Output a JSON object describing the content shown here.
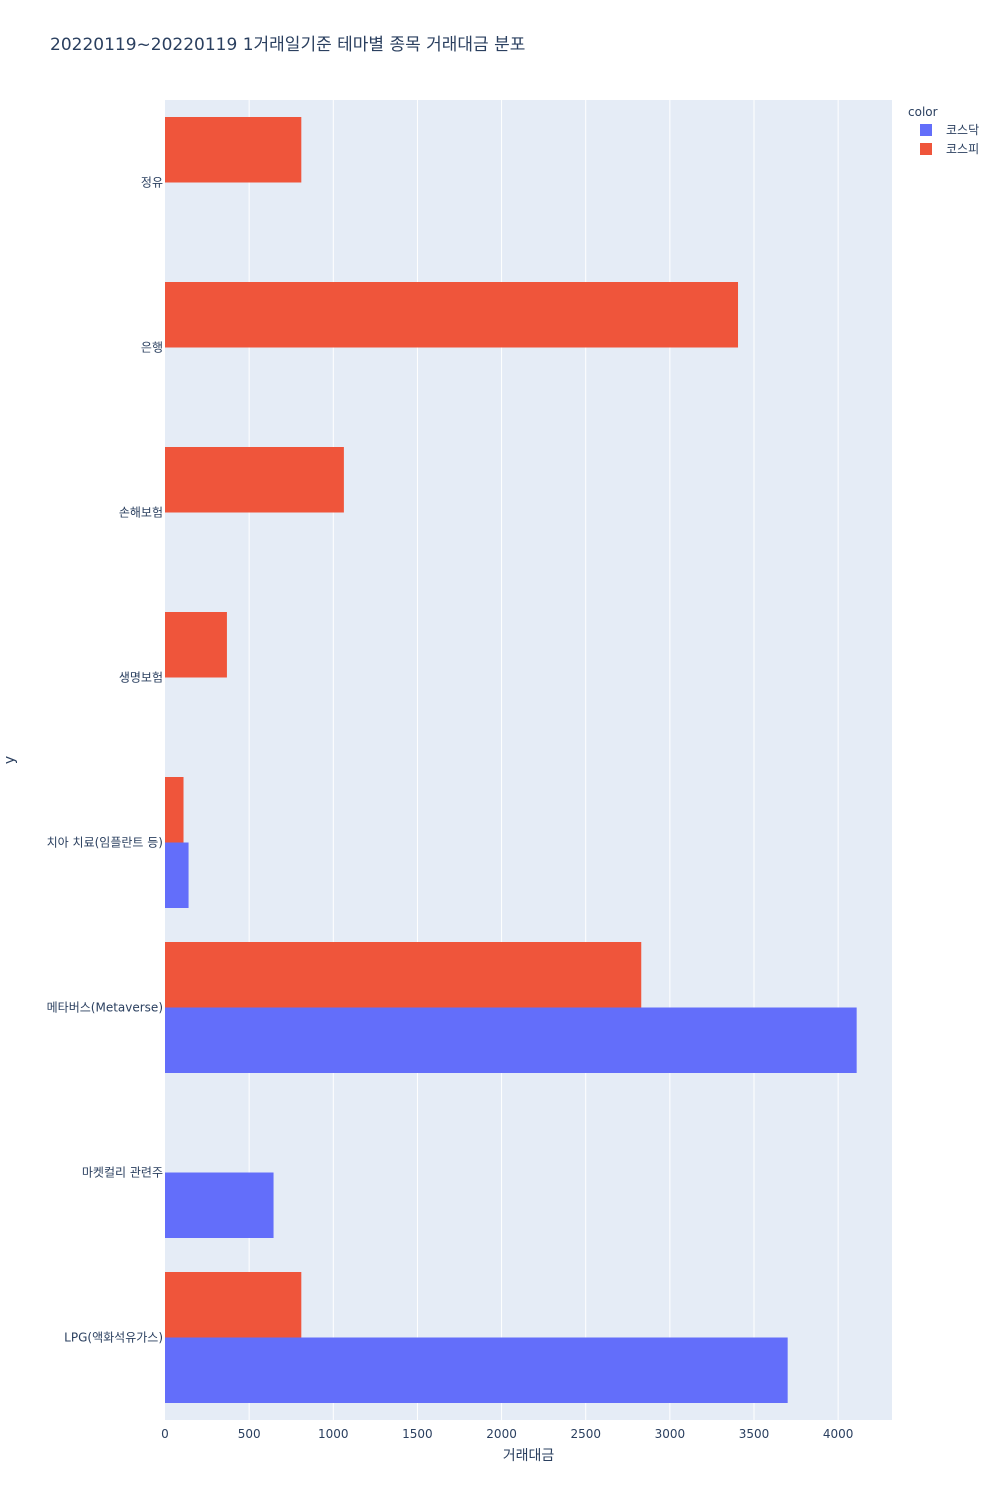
{
  "chart_data": {
    "type": "bar",
    "orientation": "horizontal",
    "title": "20220119~20220119 1거래일기준 테마별 종목 거래대금 분포",
    "xlabel": "거래대금",
    "ylabel": "y",
    "xlim": [
      0,
      4320
    ],
    "x_ticks": [
      0,
      500,
      1000,
      1500,
      2000,
      2500,
      3000,
      3500,
      4000
    ],
    "categories": [
      "LPG(액화석유가스)",
      "마켓컬리 관련주",
      "메타버스(Metaverse)",
      "치아 치료(임플란트 등)",
      "생명보험",
      "손해보험",
      "은행",
      "정유"
    ],
    "legend_title": "color",
    "legend_position": "top-right",
    "grid": true,
    "series": [
      {
        "name": "코스닥",
        "color": "#636efa",
        "values": [
          3700,
          645,
          4110,
          140,
          null,
          null,
          null,
          null
        ]
      },
      {
        "name": "코스피",
        "color": "#ef553b",
        "values": [
          810,
          null,
          2830,
          110,
          368,
          1063,
          3405,
          810
        ]
      }
    ]
  }
}
